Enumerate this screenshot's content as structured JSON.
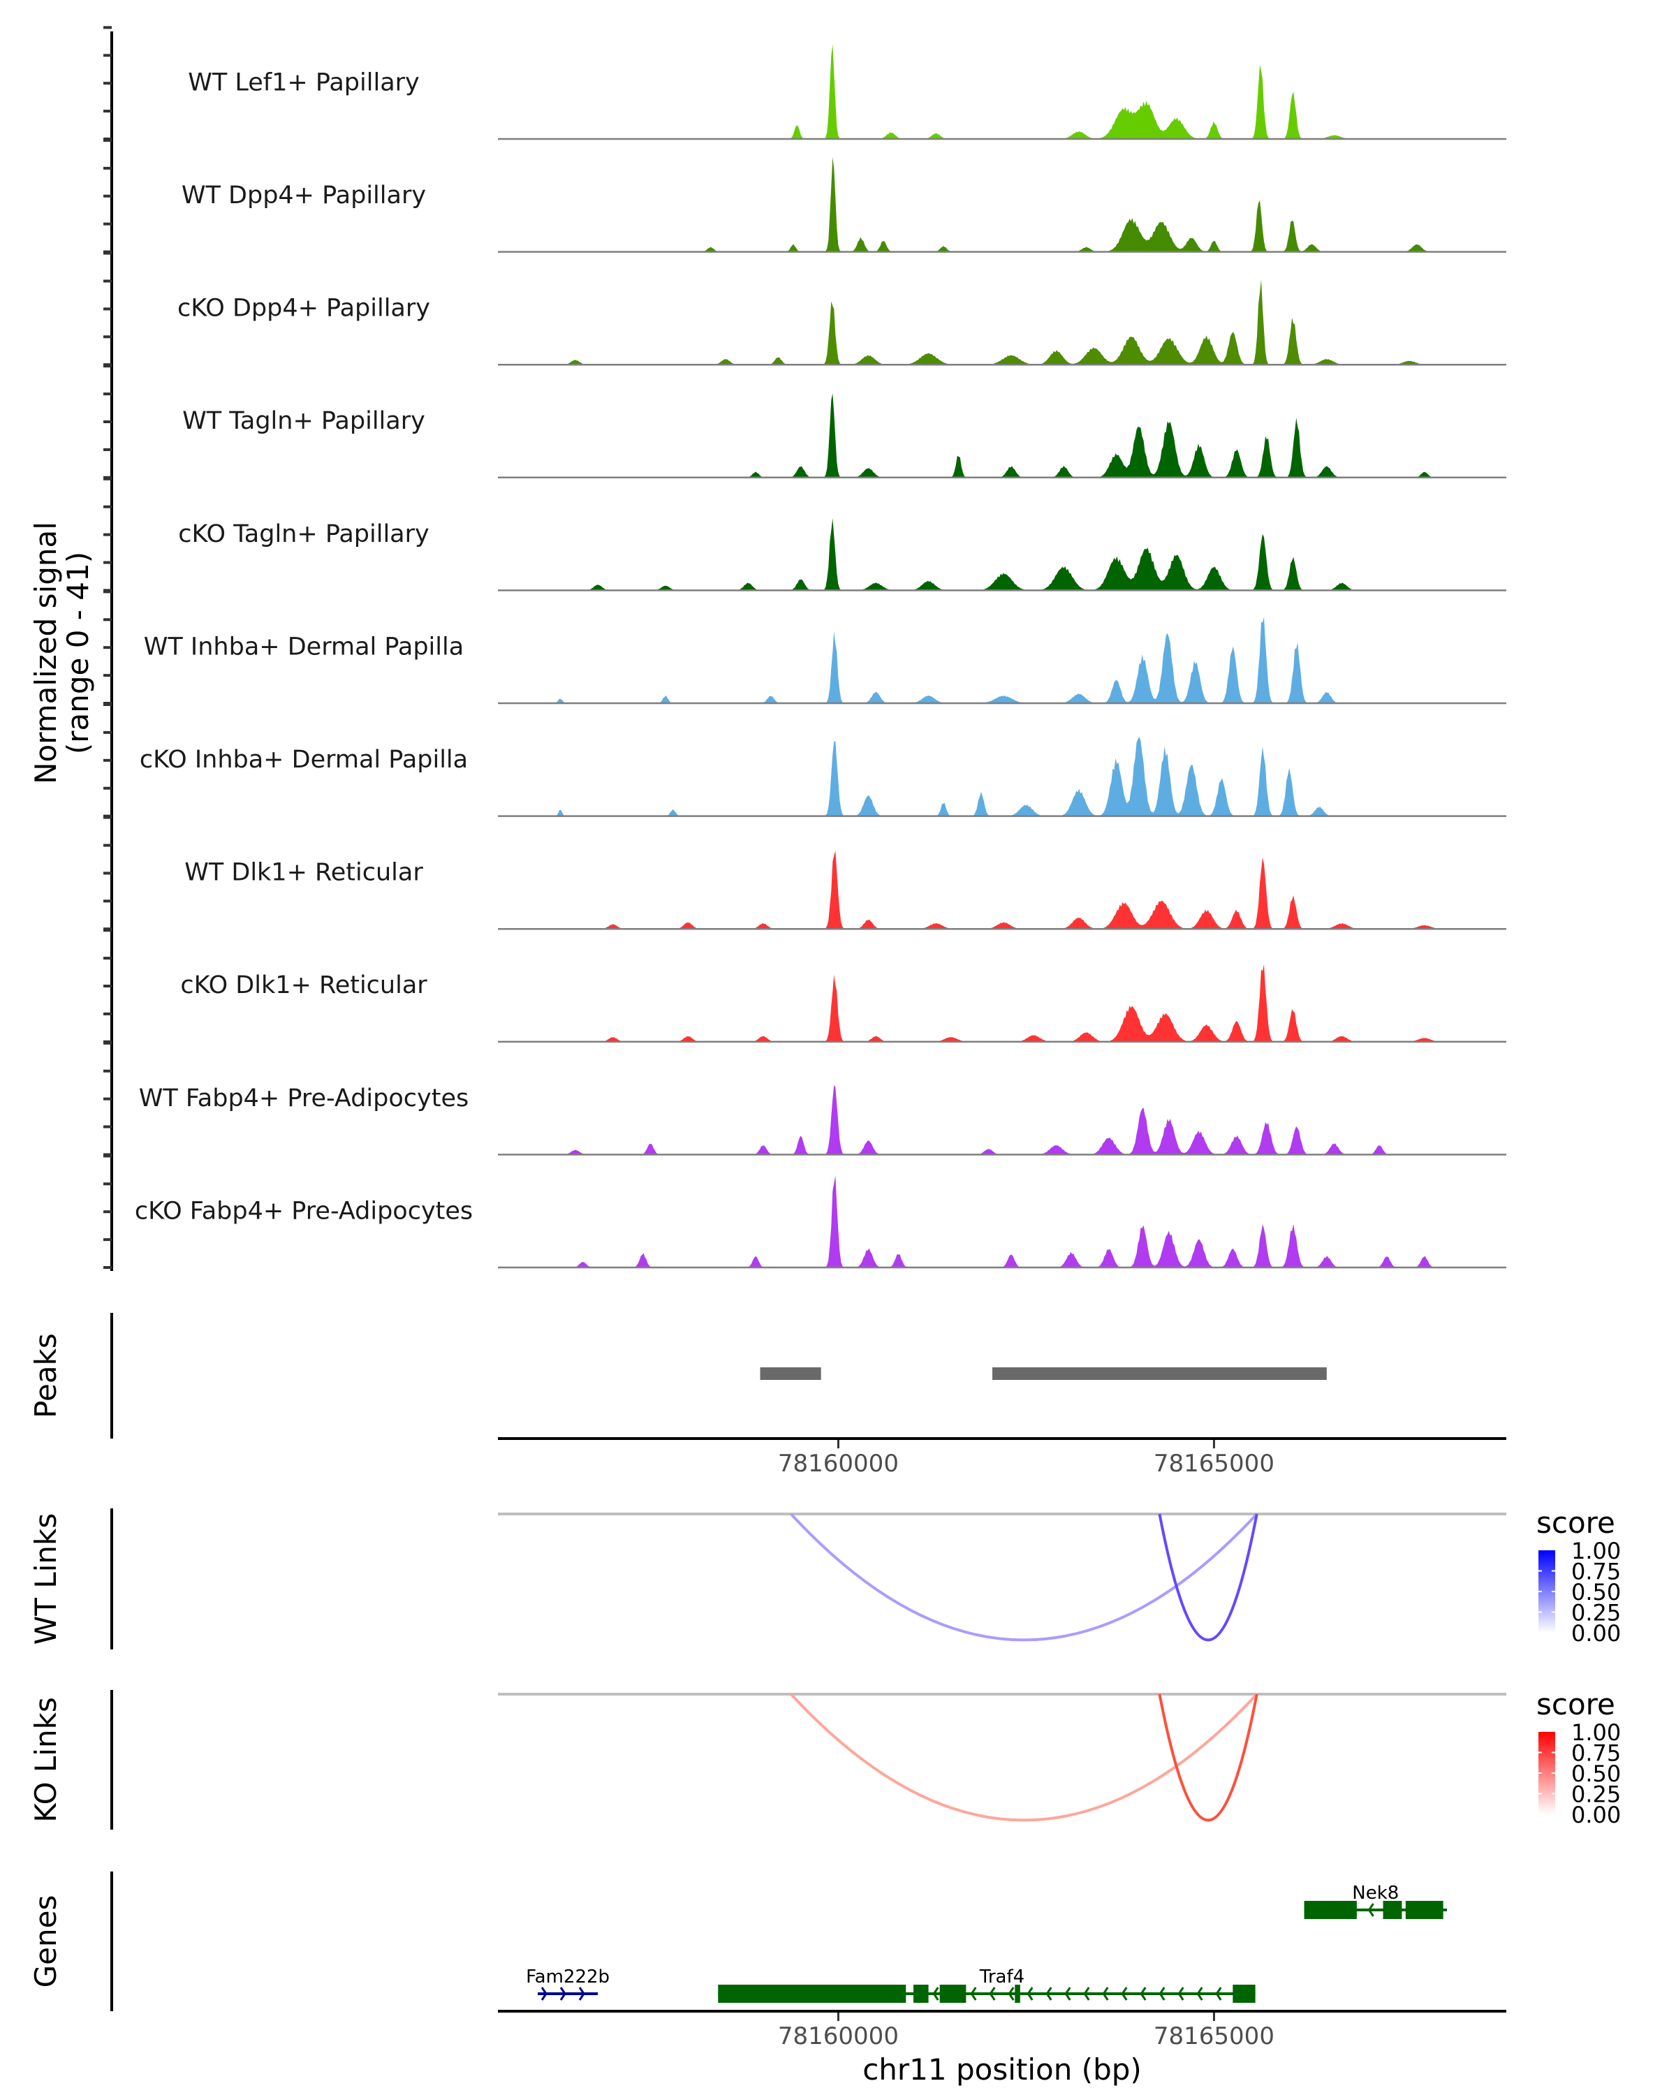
{
  "chart_data": {
    "type": "area",
    "title": "",
    "region": {
      "chromosome": "chr11",
      "start": 78155470,
      "end": 78168890
    },
    "ylabel": "Normalized signal\n(range 0 - 41)",
    "ylabel_lines": [
      "Normalized signal",
      "(range 0 - 41)"
    ],
    "ylim": [
      0,
      41
    ],
    "xlabel": "chr11 position (bp)",
    "x_ticks": [
      78160000,
      78165000
    ],
    "x_tick_labels": [
      "78160000",
      "78165000"
    ],
    "tracks": [
      {
        "name": "WT Lef1+ Papillary",
        "color": "#66CC00",
        "peaks": [
          [
            78159450,
            0.15,
            120
          ],
          [
            78159920,
            1.0,
            110
          ],
          [
            78160700,
            0.07,
            200
          ],
          [
            78161300,
            0.06,
            200
          ],
          [
            78163200,
            0.08,
            300
          ],
          [
            78163800,
            0.32,
            420
          ],
          [
            78164100,
            0.38,
            380
          ],
          [
            78164500,
            0.22,
            360
          ],
          [
            78165000,
            0.18,
            160
          ],
          [
            78165620,
            0.8,
            130
          ],
          [
            78166050,
            0.5,
            140
          ],
          [
            78166600,
            0.04,
            300
          ]
        ]
      },
      {
        "name": "WT Dpp4+ Papillary",
        "color": "#458B00",
        "peaks": [
          [
            78158300,
            0.05,
            150
          ],
          [
            78159400,
            0.08,
            120
          ],
          [
            78159930,
            1.0,
            110
          ],
          [
            78160300,
            0.15,
            160
          ],
          [
            78160600,
            0.12,
            140
          ],
          [
            78161400,
            0.06,
            150
          ],
          [
            78163300,
            0.05,
            200
          ],
          [
            78163900,
            0.35,
            400
          ],
          [
            78164300,
            0.32,
            380
          ],
          [
            78164700,
            0.15,
            240
          ],
          [
            78165000,
            0.12,
            140
          ],
          [
            78165600,
            0.56,
            130
          ],
          [
            78166040,
            0.35,
            140
          ],
          [
            78166300,
            0.08,
            200
          ],
          [
            78167700,
            0.08,
            220
          ]
        ]
      },
      {
        "name": "cKO Dpp4+ Papillary",
        "color": "#4E8C00",
        "peaks": [
          [
            78156500,
            0.05,
            200
          ],
          [
            78158500,
            0.06,
            200
          ],
          [
            78159200,
            0.08,
            160
          ],
          [
            78159920,
            0.7,
            130
          ],
          [
            78160400,
            0.1,
            300
          ],
          [
            78161200,
            0.12,
            400
          ],
          [
            78162300,
            0.1,
            400
          ],
          [
            78162900,
            0.15,
            300
          ],
          [
            78163400,
            0.18,
            380
          ],
          [
            78163900,
            0.3,
            380
          ],
          [
            78164400,
            0.28,
            400
          ],
          [
            78164900,
            0.3,
            300
          ],
          [
            78165250,
            0.35,
            200
          ],
          [
            78165620,
            0.9,
            120
          ],
          [
            78166050,
            0.5,
            150
          ],
          [
            78166500,
            0.06,
            300
          ],
          [
            78167600,
            0.04,
            300
          ]
        ]
      },
      {
        "name": "WT Tagln+ Papillary",
        "color": "#006400",
        "peaks": [
          [
            78158900,
            0.06,
            150
          ],
          [
            78159500,
            0.12,
            180
          ],
          [
            78159920,
            0.9,
            120
          ],
          [
            78160400,
            0.1,
            240
          ],
          [
            78161600,
            0.25,
            120
          ],
          [
            78162300,
            0.12,
            200
          ],
          [
            78163000,
            0.12,
            200
          ],
          [
            78163700,
            0.25,
            300
          ],
          [
            78164000,
            0.55,
            260
          ],
          [
            78164400,
            0.6,
            280
          ],
          [
            78164800,
            0.35,
            240
          ],
          [
            78165300,
            0.3,
            200
          ],
          [
            78165700,
            0.45,
            160
          ],
          [
            78166100,
            0.62,
            150
          ],
          [
            78166500,
            0.12,
            220
          ],
          [
            78167800,
            0.06,
            160
          ]
        ]
      },
      {
        "name": "cKO Tagln+ Papillary",
        "color": "#006400",
        "peaks": [
          [
            78156800,
            0.06,
            200
          ],
          [
            78157700,
            0.05,
            200
          ],
          [
            78158800,
            0.08,
            200
          ],
          [
            78159500,
            0.12,
            180
          ],
          [
            78159920,
            0.75,
            130
          ],
          [
            78160500,
            0.08,
            300
          ],
          [
            78161200,
            0.1,
            300
          ],
          [
            78162200,
            0.18,
            400
          ],
          [
            78163000,
            0.25,
            400
          ],
          [
            78163700,
            0.35,
            380
          ],
          [
            78164100,
            0.45,
            360
          ],
          [
            78164500,
            0.38,
            340
          ],
          [
            78165000,
            0.25,
            300
          ],
          [
            78165650,
            0.6,
            160
          ],
          [
            78166050,
            0.35,
            160
          ],
          [
            78166700,
            0.08,
            240
          ]
        ]
      },
      {
        "name": "WT Inhba+ Dermal Papilla",
        "color": "#5DADE2",
        "peaks": [
          [
            78156300,
            0.05,
            100
          ],
          [
            78157700,
            0.08,
            120
          ],
          [
            78159100,
            0.08,
            160
          ],
          [
            78159950,
            0.75,
            130
          ],
          [
            78160500,
            0.12,
            200
          ],
          [
            78161200,
            0.08,
            300
          ],
          [
            78162200,
            0.08,
            400
          ],
          [
            78163200,
            0.1,
            300
          ],
          [
            78163700,
            0.25,
            200
          ],
          [
            78164050,
            0.5,
            240
          ],
          [
            78164380,
            0.75,
            220
          ],
          [
            78164750,
            0.45,
            220
          ],
          [
            78165250,
            0.6,
            180
          ],
          [
            78165650,
            0.95,
            150
          ],
          [
            78166100,
            0.65,
            160
          ],
          [
            78166500,
            0.12,
            200
          ]
        ]
      },
      {
        "name": "cKO Inhba+ Dermal Papilla",
        "color": "#5DADE2",
        "peaks": [
          [
            78156300,
            0.07,
            80
          ],
          [
            78157800,
            0.07,
            120
          ],
          [
            78159950,
            0.82,
            140
          ],
          [
            78160400,
            0.22,
            220
          ],
          [
            78161400,
            0.15,
            120
          ],
          [
            78161900,
            0.25,
            140
          ],
          [
            78162500,
            0.12,
            300
          ],
          [
            78163200,
            0.28,
            300
          ],
          [
            78163700,
            0.6,
            260
          ],
          [
            78164000,
            0.85,
            240
          ],
          [
            78164350,
            0.72,
            220
          ],
          [
            78164700,
            0.55,
            240
          ],
          [
            78165100,
            0.4,
            200
          ],
          [
            78165650,
            0.72,
            150
          ],
          [
            78166000,
            0.5,
            160
          ],
          [
            78166400,
            0.1,
            200
          ]
        ]
      },
      {
        "name": "WT Dlk1+ Reticular",
        "color": "#FF3333",
        "peaks": [
          [
            78157000,
            0.05,
            200
          ],
          [
            78158000,
            0.07,
            200
          ],
          [
            78159000,
            0.06,
            200
          ],
          [
            78159950,
            0.85,
            140
          ],
          [
            78160400,
            0.1,
            200
          ],
          [
            78161300,
            0.06,
            300
          ],
          [
            78162200,
            0.07,
            300
          ],
          [
            78163200,
            0.12,
            300
          ],
          [
            78163800,
            0.28,
            380
          ],
          [
            78164300,
            0.3,
            400
          ],
          [
            78164900,
            0.2,
            300
          ],
          [
            78165300,
            0.2,
            200
          ],
          [
            78165650,
            0.75,
            150
          ],
          [
            78166050,
            0.35,
            160
          ],
          [
            78166700,
            0.06,
            300
          ],
          [
            78167800,
            0.04,
            300
          ]
        ]
      },
      {
        "name": "cKO Dlk1+ Reticular",
        "color": "#FF3333",
        "peaks": [
          [
            78157000,
            0.05,
            200
          ],
          [
            78158000,
            0.06,
            200
          ],
          [
            78159000,
            0.06,
            200
          ],
          [
            78159950,
            0.7,
            140
          ],
          [
            78160500,
            0.06,
            200
          ],
          [
            78161500,
            0.05,
            300
          ],
          [
            78162600,
            0.07,
            300
          ],
          [
            78163300,
            0.1,
            300
          ],
          [
            78163900,
            0.38,
            380
          ],
          [
            78164350,
            0.3,
            380
          ],
          [
            78164900,
            0.18,
            300
          ],
          [
            78165300,
            0.22,
            200
          ],
          [
            78165650,
            0.85,
            150
          ],
          [
            78166050,
            0.35,
            160
          ],
          [
            78166700,
            0.06,
            260
          ],
          [
            78167800,
            0.04,
            300
          ]
        ]
      },
      {
        "name": "WT Fabp4+ Pre-Adipocytes",
        "color": "#B03BF0",
        "peaks": [
          [
            78156500,
            0.05,
            200
          ],
          [
            78157500,
            0.12,
            150
          ],
          [
            78159000,
            0.1,
            160
          ],
          [
            78159500,
            0.2,
            140
          ],
          [
            78159950,
            0.75,
            140
          ],
          [
            78160400,
            0.15,
            200
          ],
          [
            78162000,
            0.06,
            200
          ],
          [
            78162900,
            0.1,
            300
          ],
          [
            78163600,
            0.18,
            300
          ],
          [
            78164050,
            0.5,
            220
          ],
          [
            78164400,
            0.38,
            260
          ],
          [
            78164800,
            0.25,
            280
          ],
          [
            78165300,
            0.2,
            240
          ],
          [
            78165700,
            0.35,
            200
          ],
          [
            78166100,
            0.3,
            180
          ],
          [
            78166600,
            0.12,
            200
          ],
          [
            78167200,
            0.1,
            160
          ]
        ]
      },
      {
        "name": "cKO Fabp4+ Pre-Adipocytes",
        "color": "#B03BF0",
        "peaks": [
          [
            78156600,
            0.06,
            160
          ],
          [
            78157400,
            0.15,
            150
          ],
          [
            78158900,
            0.12,
            140
          ],
          [
            78159950,
            1.0,
            130
          ],
          [
            78160400,
            0.2,
            200
          ],
          [
            78160800,
            0.15,
            150
          ],
          [
            78162300,
            0.14,
            160
          ],
          [
            78163100,
            0.16,
            220
          ],
          [
            78163600,
            0.2,
            200
          ],
          [
            78164050,
            0.45,
            200
          ],
          [
            78164400,
            0.38,
            260
          ],
          [
            78164800,
            0.3,
            240
          ],
          [
            78165250,
            0.2,
            200
          ],
          [
            78165650,
            0.45,
            160
          ],
          [
            78166050,
            0.45,
            180
          ],
          [
            78166500,
            0.12,
            200
          ],
          [
            78167300,
            0.12,
            160
          ],
          [
            78167800,
            0.12,
            160
          ]
        ]
      }
    ],
    "peaks_track": {
      "title": "Peaks",
      "color": "#696969",
      "ranges": [
        [
          78158960,
          78159770
        ],
        [
          78162050,
          78166500
        ]
      ]
    },
    "link_tracks": [
      {
        "title": "WT Links",
        "legend_title": "score",
        "low_color": "#FFFFFF",
        "high_color": "#0000FF",
        "legend_ticks": [
          "1.00",
          "0.75",
          "0.50",
          "0.25",
          "0.00"
        ],
        "links": [
          {
            "start": 78159370,
            "end": 78165570,
            "score": 0.38
          },
          {
            "start": 78164275,
            "end": 78165570,
            "score": 0.7
          }
        ]
      },
      {
        "title": "KO Links",
        "legend_title": "score",
        "low_color": "#FFFFFF",
        "high_color": "#FF0000",
        "legend_ticks": [
          "1.00",
          "0.75",
          "0.50",
          "0.25",
          "0.00"
        ],
        "links": [
          {
            "start": 78159370,
            "end": 78165570,
            "score": 0.38
          },
          {
            "start": 78164275,
            "end": 78165570,
            "score": 0.75
          }
        ]
      }
    ],
    "genes_track": {
      "title": "Genes",
      "genes": [
        {
          "name": "Fam222b",
          "start": 78156000,
          "end": 78156800,
          "strand": "+",
          "color": "#00008B",
          "row": 1,
          "exons": []
        },
        {
          "name": "Traf4",
          "start": 78158400,
          "end": 78165550,
          "strand": "-",
          "color": "#006400",
          "row": 1,
          "exons": [
            [
              78158400,
              78160900
            ],
            [
              78161000,
              78161200
            ],
            [
              78161350,
              78161700
            ],
            [
              78162350,
              78162420
            ],
            [
              78165250,
              78165550
            ]
          ]
        },
        {
          "name": "Nek8",
          "start": 78166200,
          "end": 78168100,
          "strand": "-",
          "color": "#006400",
          "row": 0,
          "exons": [
            [
              78166200,
              78166900
            ],
            [
              78167250,
              78167500
            ],
            [
              78167550,
              78168050
            ]
          ]
        }
      ]
    }
  }
}
